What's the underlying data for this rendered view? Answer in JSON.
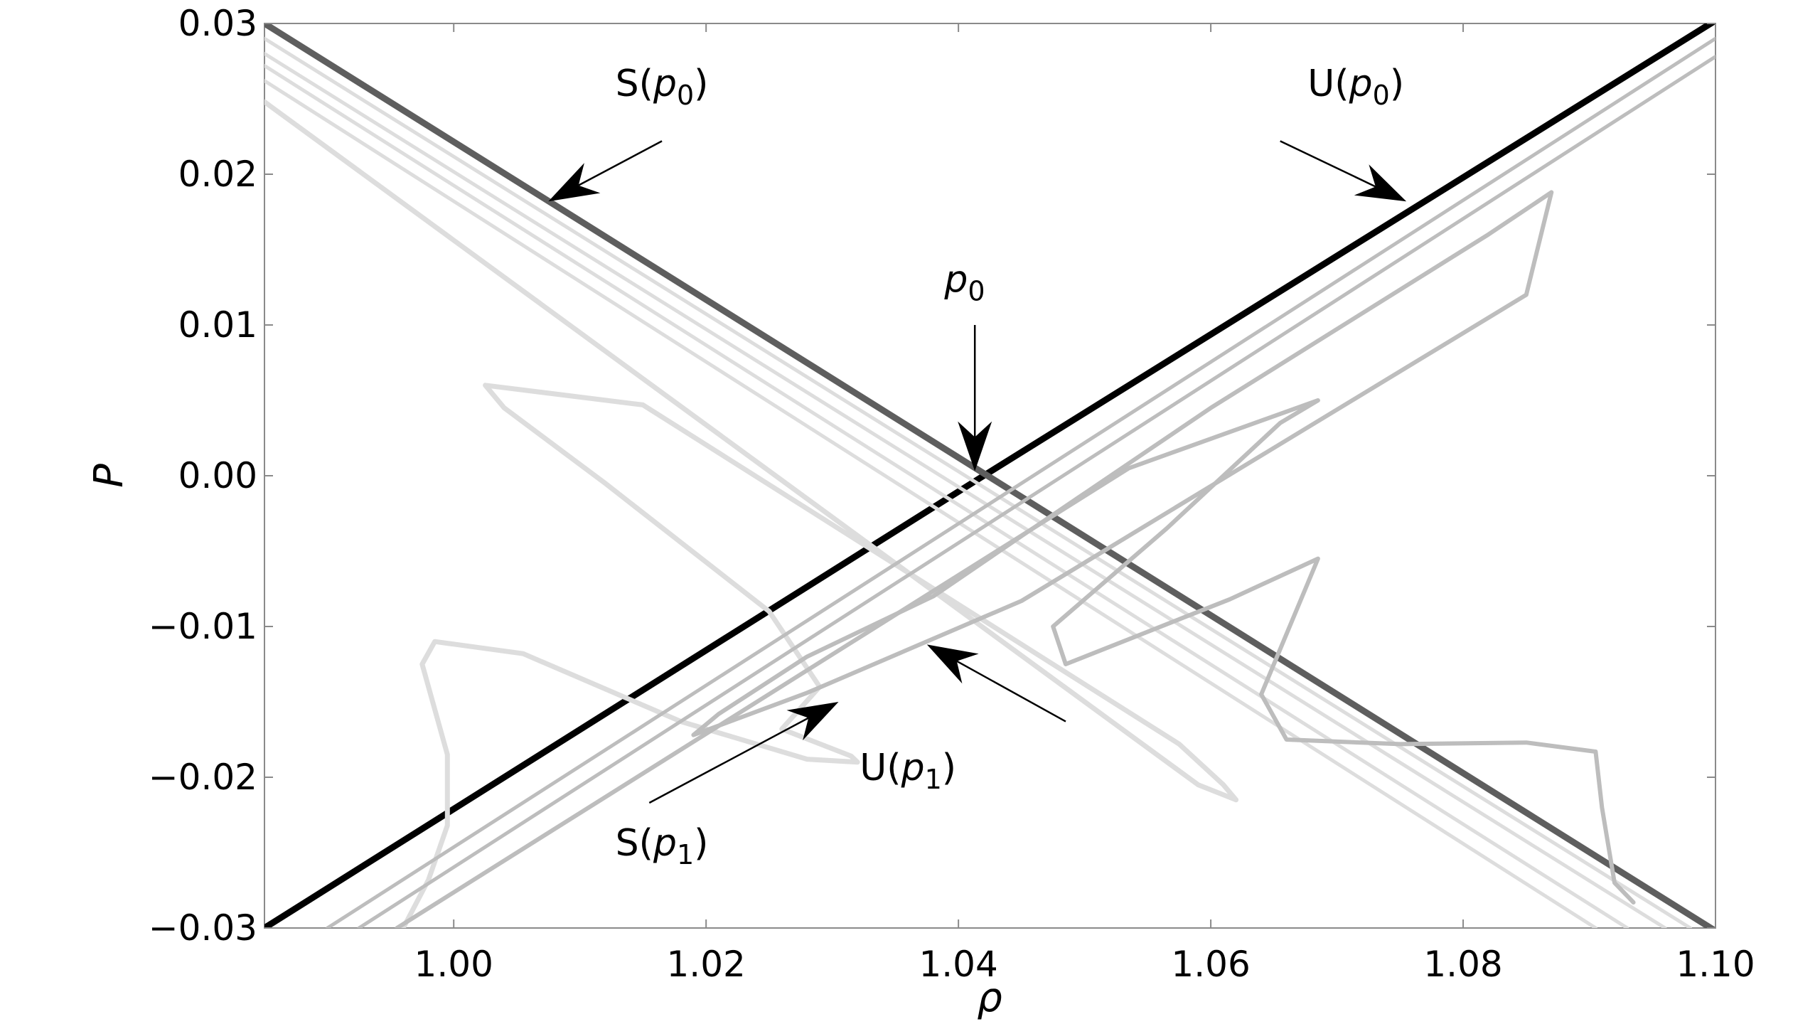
{
  "chart_data": {
    "type": "scatter",
    "xlabel": "ρ",
    "ylabel": "P",
    "xlim": [
      0.985,
      1.1
    ],
    "ylim": [
      -0.03,
      0.03
    ],
    "x_ticks": [
      {
        "value": 1.0,
        "label": "1.00"
      },
      {
        "value": 1.02,
        "label": "1.02"
      },
      {
        "value": 1.04,
        "label": "1.04"
      },
      {
        "value": 1.06,
        "label": "1.06"
      },
      {
        "value": 1.08,
        "label": "1.08"
      },
      {
        "value": 1.1,
        "label": "1.10"
      }
    ],
    "y_ticks": [
      {
        "value": 0.03,
        "label": "0.03"
      },
      {
        "value": 0.02,
        "label": "0.02"
      },
      {
        "value": 0.01,
        "label": "0.01"
      },
      {
        "value": 0.0,
        "label": "0.00"
      },
      {
        "value": -0.01,
        "label": "−0.01"
      },
      {
        "value": -0.02,
        "label": "−0.02"
      },
      {
        "value": -0.03,
        "label": "−0.03"
      }
    ],
    "grid": false,
    "series": [
      {
        "color": "#000000",
        "width": 9,
        "points": [
          [
            0.985,
            -0.03
          ],
          [
            1.042,
            0.0
          ],
          [
            1.1,
            0.0302
          ]
        ]
      },
      {
        "color": "#5e5e5e",
        "width": 9,
        "points": [
          [
            0.985,
            0.03
          ],
          [
            1.1,
            -0.0302
          ]
        ]
      },
      {
        "color": "#dddddd",
        "width": 5,
        "points": [
          [
            0.985,
            0.029
          ],
          [
            1.098,
            -0.03
          ]
        ]
      },
      {
        "color": "#dddddd",
        "width": 5,
        "points": [
          [
            0.985,
            0.028
          ],
          [
            1.096,
            -0.03
          ]
        ]
      },
      {
        "color": "#dddddd",
        "width": 5,
        "points": [
          [
            0.985,
            0.0272
          ],
          [
            1.093,
            -0.03
          ]
        ]
      },
      {
        "color": "#dddddd",
        "width": 5,
        "points": [
          [
            0.985,
            0.0262
          ],
          [
            1.0905,
            -0.03
          ]
        ]
      },
      {
        "color": "#dddddd",
        "width": 7,
        "points": [
          [
            0.985,
            0.0248
          ],
          [
            1.059,
            -0.0205
          ],
          [
            1.062,
            -0.0215
          ],
          [
            1.061,
            -0.0205
          ],
          [
            1.0575,
            -0.0178
          ],
          [
            1.015,
            0.0047
          ],
          [
            1.0025,
            0.006
          ],
          [
            1.004,
            0.0045
          ],
          [
            1.012,
            -0.0005
          ],
          [
            1.025,
            -0.009
          ],
          [
            1.029,
            -0.014
          ],
          [
            1.026,
            -0.0168
          ],
          [
            1.0315,
            -0.0186
          ],
          [
            1.032,
            -0.019
          ],
          [
            1.028,
            -0.0188
          ],
          [
            1.018,
            -0.0163
          ],
          [
            1.0055,
            -0.0118
          ],
          [
            0.9985,
            -0.011
          ],
          [
            0.9975,
            -0.0125
          ],
          [
            0.9995,
            -0.0185
          ],
          [
            0.9995,
            -0.0232
          ],
          [
            0.998,
            -0.0268
          ],
          [
            0.996,
            -0.03
          ]
        ]
      },
      {
        "color": "#bdbdbd",
        "width": 5,
        "points": [
          [
            0.99,
            -0.03
          ],
          [
            1.1,
            0.029
          ]
        ]
      },
      {
        "color": "#bdbdbd",
        "width": 5,
        "points": [
          [
            0.9925,
            -0.03
          ],
          [
            1.1,
            0.0278
          ]
        ]
      },
      {
        "color": "#bdbdbd",
        "width": 6,
        "points": [
          [
            0.9955,
            -0.03
          ],
          [
            1.0535,
            0.0005
          ],
          [
            1.0685,
            0.005
          ],
          [
            1.0655,
            0.0035
          ],
          [
            1.0565,
            -0.0035
          ],
          [
            1.0475,
            -0.01
          ],
          [
            1.0485,
            -0.0125
          ],
          [
            1.0615,
            -0.0082
          ],
          [
            1.0685,
            -0.0055
          ],
          [
            1.0675,
            -0.0075
          ],
          [
            1.064,
            -0.0145
          ],
          [
            1.066,
            -0.0175
          ],
          [
            1.075,
            -0.0178
          ],
          [
            1.085,
            -0.0177
          ],
          [
            1.0905,
            -0.0183
          ],
          [
            1.091,
            -0.022
          ],
          [
            1.092,
            -0.027
          ],
          [
            1.0935,
            -0.0283
          ]
        ]
      },
      {
        "color": "#bdbdbd",
        "width": 6,
        "points": [
          [
            1.019,
            -0.0172
          ],
          [
            1.028,
            -0.0144
          ],
          [
            1.045,
            -0.0083
          ],
          [
            1.085,
            0.012
          ],
          [
            1.087,
            0.0188
          ],
          [
            1.082,
            0.016
          ],
          [
            1.06,
            0.0045
          ],
          [
            1.045,
            -0.004
          ],
          [
            1.038,
            -0.008
          ],
          [
            1.028,
            -0.012
          ],
          [
            1.021,
            -0.0158
          ],
          [
            1.019,
            -0.0172
          ]
        ]
      }
    ],
    "annotations": [
      {
        "base": "S(",
        "var": "p",
        "sub": "0",
        "close": ")",
        "text_at": [
          1.0165,
          0.0252
        ],
        "tail": [
          1.0165,
          0.0222
        ],
        "head": [
          1.0075,
          0.0182
        ]
      },
      {
        "base": "U(",
        "var": "p",
        "sub": "0",
        "close": ")",
        "text_at": [
          1.0715,
          0.0252
        ],
        "tail": [
          1.0655,
          0.0222
        ],
        "head": [
          1.0755,
          0.0182
        ]
      },
      {
        "base": "",
        "var": "p",
        "sub": "0",
        "close": "",
        "text_at": [
          1.0405,
          0.0122
        ],
        "tail": [
          1.0413,
          0.01
        ],
        "head": [
          1.0413,
          0.0003
        ]
      },
      {
        "base": "U(",
        "var": "p",
        "sub": "1",
        "close": ")",
        "text_at": [
          1.036,
          -0.0202
        ],
        "tail": [
          1.0485,
          -0.0163
        ],
        "head": [
          1.0375,
          -0.0112
        ]
      },
      {
        "base": "S(",
        "var": "p",
        "sub": "1",
        "close": ")",
        "text_at": [
          1.0165,
          -0.0252
        ],
        "tail": [
          1.0155,
          -0.0217
        ],
        "head": [
          1.0305,
          -0.015
        ]
      }
    ]
  }
}
